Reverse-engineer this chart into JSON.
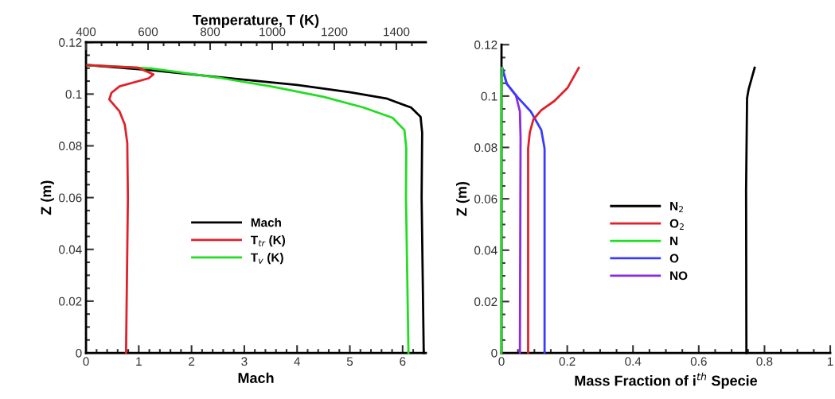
{
  "chart_data": [
    {
      "type": "line",
      "xlabel": "Mach",
      "x2label": "Temperature, T (K)",
      "ylabel": "Z (m)",
      "xlim": [
        0,
        6.44
      ],
      "xticks": [
        0,
        1,
        2,
        3,
        4,
        5,
        6
      ],
      "x2lim": [
        400,
        1495
      ],
      "x2ticks": [
        400,
        600,
        800,
        1000,
        1200,
        1400
      ],
      "ylim": [
        0,
        0.12
      ],
      "yticks": [
        0,
        0.02,
        0.04,
        0.06,
        0.08,
        {
          "value": 0.1,
          "label": "0.1"
        },
        0.12
      ],
      "legend": "center",
      "grid": false,
      "series": [
        {
          "name": "Mach",
          "color": "#000000",
          "x": [
            0.03,
            1.24,
            2.49,
            4.0,
            5.01,
            5.71,
            6.16,
            6.34,
            6.37,
            6.36,
            6.4
          ],
          "values": [
            0.1112,
            0.1092,
            0.1066,
            0.1035,
            0.1007,
            0.0982,
            0.0948,
            0.0912,
            0.0851,
            0.06,
            0
          ]
        },
        {
          "name": "T$_{tr}$ (K)",
          "color": "#e0202a",
          "axis": "x2",
          "x": [
            405,
            567,
            617,
            602,
            508,
            482,
            475,
            508,
            525,
            533,
            535,
            529
          ],
          "values": [
            0.1112,
            0.1102,
            0.1076,
            0.1061,
            0.103,
            0.1005,
            0.0979,
            0.0933,
            0.0882,
            0.0811,
            0.06,
            0
          ]
        },
        {
          "name": "T$_{v}$ (K)",
          "color": "#22dd22",
          "axis": "x2",
          "x": [
            405,
            610,
            824,
            995,
            1166,
            1294,
            1388,
            1426,
            1432,
            1431,
            1439
          ],
          "values": [
            0.1112,
            0.1099,
            0.1064,
            0.103,
            0.0989,
            0.0948,
            0.0908,
            0.0861,
            0.079,
            0.06,
            0
          ]
        }
      ]
    },
    {
      "type": "line",
      "xlabel": "Mass Fraction of i$^{th}$ Specie",
      "ylabel": "Z (m)",
      "xlim": [
        0,
        1
      ],
      "xticks": [
        0,
        0.2,
        0.4,
        0.6,
        0.8,
        1
      ],
      "ylim": [
        0,
        0.12
      ],
      "yticks": [
        0,
        0.02,
        0.04,
        0.06,
        0.08,
        {
          "value": 0.1,
          "label": "0.1"
        },
        0.12
      ],
      "legend": "center",
      "grid": false,
      "series": [
        {
          "name": "N$_{2}$",
          "color": "#000000",
          "x": [
            0.77,
            0.752,
            0.747,
            0.744,
            0.745
          ],
          "values": [
            0.111,
            0.1028,
            0.0992,
            0.063,
            0
          ]
        },
        {
          "name": "O$_{2}$",
          "color": "#e0202a",
          "x": [
            0.235,
            0.2015,
            0.161,
            0.121,
            0.097,
            0.086,
            0.081,
            0.081
          ],
          "values": [
            0.111,
            0.1033,
            0.0981,
            0.0945,
            0.0909,
            0.0858,
            0.0796,
            0
          ]
        },
        {
          "name": "N",
          "color": "#22dd22",
          "x": [
            0.002,
            0,
            0
          ],
          "values": [
            0.111,
            0.1,
            0
          ]
        },
        {
          "name": "O",
          "color": "#3a3aff",
          "x": [
            0.002,
            0.016,
            0.048,
            0.089,
            0.121,
            0.131,
            0.131
          ],
          "values": [
            0.111,
            0.1048,
            0.0997,
            0.094,
            0.0868,
            0.0796,
            0
          ]
        },
        {
          "name": "NO",
          "color": "#8a2be2",
          "x": [
            0.002,
            0.016,
            0.044,
            0.056,
            0.058,
            0.056
          ],
          "values": [
            0.111,
            0.1048,
            0.1002,
            0.094,
            0.0838,
            0
          ]
        }
      ]
    }
  ]
}
